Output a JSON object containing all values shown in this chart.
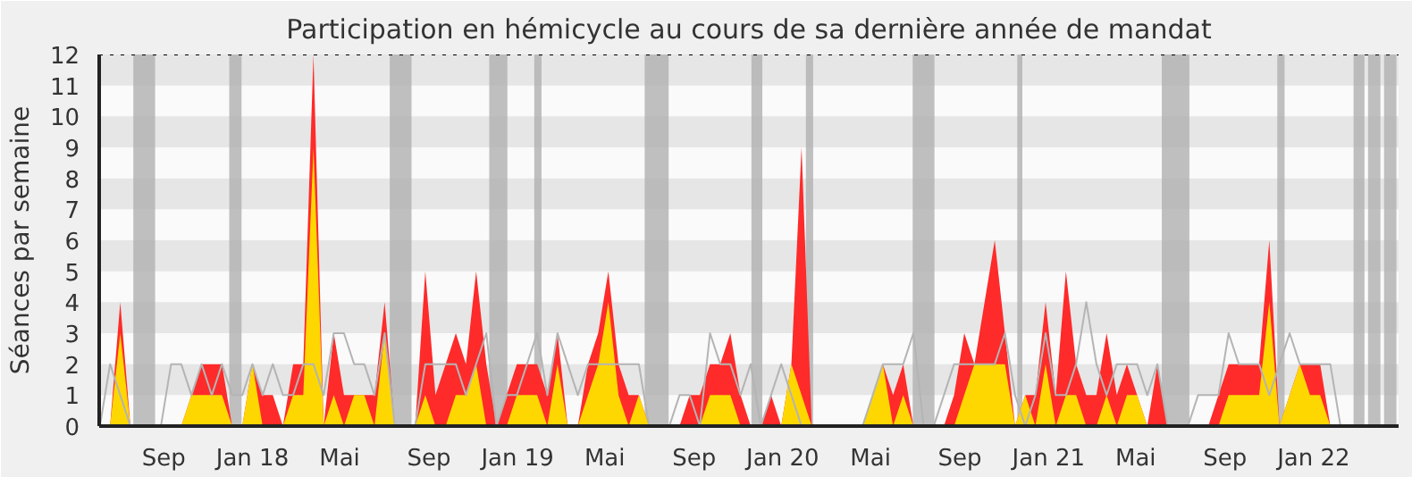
{
  "chart_data": {
    "type": "area",
    "title": "Participation en hémicycle au cours de sa dernière année de mandat",
    "ylabel": "Séances par semaine",
    "x": [
      "2017-06-05",
      "2017-06-19",
      "2017-07-03",
      "2017-07-17",
      "2017-07-31",
      "2017-08-14",
      "2017-08-28",
      "2017-09-11",
      "2017-09-25",
      "2017-10-09",
      "2017-10-23",
      "2017-11-06",
      "2017-11-20",
      "2017-12-04",
      "2017-12-18",
      "2018-01-01",
      "2018-01-15",
      "2018-01-29",
      "2018-02-12",
      "2018-02-26",
      "2018-03-12",
      "2018-03-26",
      "2018-04-09",
      "2018-04-23",
      "2018-05-07",
      "2018-05-21",
      "2018-06-04",
      "2018-06-18",
      "2018-07-02",
      "2018-07-16",
      "2018-07-30",
      "2018-08-13",
      "2018-08-27",
      "2018-09-10",
      "2018-09-24",
      "2018-10-08",
      "2018-10-22",
      "2018-11-05",
      "2018-11-19",
      "2018-12-03",
      "2018-12-17",
      "2018-12-31",
      "2019-01-14",
      "2019-01-28",
      "2019-02-11",
      "2019-02-25",
      "2019-03-11",
      "2019-03-25",
      "2019-04-08",
      "2019-04-22",
      "2019-05-06",
      "2019-05-20",
      "2019-06-03",
      "2019-06-17",
      "2019-07-01",
      "2019-07-15",
      "2019-07-29",
      "2019-08-12",
      "2019-08-26",
      "2019-09-09",
      "2019-09-23",
      "2019-10-07",
      "2019-10-21",
      "2019-11-04",
      "2019-11-18",
      "2019-12-02",
      "2019-12-16",
      "2019-12-30",
      "2020-01-13",
      "2020-01-27",
      "2020-02-10",
      "2020-02-24",
      "2020-03-09",
      "2020-03-23",
      "2020-04-06",
      "2020-04-20",
      "2020-05-04",
      "2020-05-18",
      "2020-06-01",
      "2020-06-15",
      "2020-06-29",
      "2020-07-13",
      "2020-07-27",
      "2020-08-10",
      "2020-08-24",
      "2020-09-07",
      "2020-09-21",
      "2020-10-05",
      "2020-10-19",
      "2020-11-02",
      "2020-11-16",
      "2020-11-30",
      "2020-12-14",
      "2020-12-28",
      "2021-01-11",
      "2021-01-25",
      "2021-02-08",
      "2021-02-22",
      "2021-03-08",
      "2021-03-22",
      "2021-04-05",
      "2021-04-19",
      "2021-05-03",
      "2021-05-17",
      "2021-05-31",
      "2021-06-14",
      "2021-06-28",
      "2021-07-12",
      "2021-07-26",
      "2021-08-09",
      "2021-08-23",
      "2021-09-06",
      "2021-09-20",
      "2021-10-04",
      "2021-10-18",
      "2021-11-01",
      "2021-11-15",
      "2021-11-29",
      "2021-12-13",
      "2021-12-27",
      "2022-01-10",
      "2022-01-24",
      "2022-02-07",
      "2022-02-21",
      "2022-03-07",
      "2022-03-21",
      "2022-04-04",
      "2022-04-18"
    ],
    "series": [
      {
        "color": "#ff2a2a",
        "values": [
          0,
          0,
          4,
          0,
          0,
          0,
          0,
          0,
          0,
          1,
          2,
          2,
          2,
          0,
          0,
          2,
          1,
          1,
          0,
          2,
          2,
          12,
          0,
          3,
          1,
          1,
          1,
          1,
          4,
          0,
          0,
          0,
          5,
          1,
          2,
          3,
          2,
          5,
          2,
          0,
          1,
          2,
          2,
          2,
          1,
          3,
          0,
          0,
          2,
          3,
          5,
          2,
          1,
          1,
          0,
          0,
          0,
          0,
          1,
          1,
          2,
          2,
          3,
          1,
          0,
          0,
          1,
          0,
          2,
          9,
          0,
          0,
          0,
          0,
          0,
          0,
          1,
          2,
          1,
          2,
          0,
          0,
          0,
          0,
          1,
          3,
          2,
          4,
          6,
          3,
          0,
          1,
          1,
          4,
          1,
          5,
          2,
          1,
          1,
          3,
          1,
          2,
          1,
          0,
          2,
          0,
          0,
          0,
          0,
          0,
          1,
          2,
          2,
          2,
          2,
          6,
          0,
          1,
          2,
          2,
          2,
          0,
          0,
          0,
          0,
          0,
          0,
          0
        ]
      },
      {
        "color": "#ffd700",
        "values": [
          0,
          0,
          3,
          0,
          0,
          0,
          0,
          0,
          0,
          1,
          1,
          1,
          1,
          0,
          0,
          2,
          0,
          0,
          0,
          1,
          1,
          9,
          0,
          1,
          0,
          1,
          1,
          0,
          3,
          0,
          0,
          0,
          1,
          0,
          0,
          1,
          1,
          2,
          0,
          0,
          0,
          1,
          1,
          1,
          0,
          2,
          0,
          0,
          1,
          2,
          4,
          1,
          0,
          1,
          0,
          0,
          0,
          0,
          0,
          0,
          1,
          1,
          1,
          0,
          0,
          0,
          0,
          0,
          2,
          1,
          0,
          0,
          0,
          0,
          0,
          0,
          1,
          2,
          0,
          1,
          0,
          0,
          0,
          0,
          0,
          1,
          2,
          2,
          2,
          2,
          0,
          1,
          0,
          2,
          0,
          1,
          1,
          0,
          0,
          1,
          0,
          1,
          1,
          0,
          0,
          0,
          0,
          0,
          0,
          0,
          0,
          1,
          1,
          1,
          1,
          4,
          0,
          1,
          2,
          1,
          1,
          0,
          0,
          0,
          0,
          0,
          0,
          0
        ]
      },
      {
        "type": "line",
        "color": "#b4b4b4",
        "values": [
          0,
          2,
          1,
          0,
          0,
          0,
          0,
          2,
          2,
          1,
          2,
          1,
          2,
          1,
          1,
          2,
          1,
          2,
          1,
          1,
          2,
          2,
          1,
          3,
          3,
          2,
          2,
          1,
          3,
          0,
          0,
          0,
          2,
          2,
          2,
          2,
          1,
          2,
          3,
          0,
          1,
          1,
          2,
          3,
          1,
          3,
          2,
          1,
          2,
          2,
          2,
          2,
          2,
          2,
          0,
          0,
          0,
          1,
          1,
          0,
          3,
          2,
          2,
          1,
          2,
          0,
          1,
          2,
          1,
          0,
          0,
          0,
          0,
          0,
          0,
          0,
          1,
          2,
          2,
          2,
          3,
          0,
          0,
          1,
          2,
          2,
          2,
          2,
          2,
          3,
          1,
          0,
          1,
          3,
          1,
          1,
          2,
          4,
          2,
          1,
          2,
          2,
          2,
          1,
          2,
          0,
          0,
          0,
          1,
          1,
          1,
          3,
          2,
          2,
          2,
          1,
          2,
          3,
          2,
          2,
          2,
          2,
          0,
          0,
          0,
          0,
          0,
          0
        ]
      }
    ],
    "xlim": [
      "2017-06-04",
      "2022-04-28"
    ],
    "xticks": [
      {
        "value": "2017-09-01",
        "label": "Sep"
      },
      {
        "value": "2018-01-01",
        "label": "Jan 18"
      },
      {
        "value": "2018-05-01",
        "label": "Mai"
      },
      {
        "value": "2018-09-01",
        "label": "Sep"
      },
      {
        "value": "2019-01-01",
        "label": "Jan 19"
      },
      {
        "value": "2019-05-01",
        "label": "Mai"
      },
      {
        "value": "2019-09-01",
        "label": "Sep"
      },
      {
        "value": "2020-01-01",
        "label": "Jan 20"
      },
      {
        "value": "2020-05-01",
        "label": "Mai"
      },
      {
        "value": "2020-09-01",
        "label": "Sep"
      },
      {
        "value": "2021-01-01",
        "label": "Jan 21"
      },
      {
        "value": "2021-05-01",
        "label": "Mai"
      },
      {
        "value": "2021-09-01",
        "label": "Sep"
      },
      {
        "value": "2022-01-01",
        "label": "Jan 22"
      }
    ],
    "ylim": [
      0,
      12
    ],
    "yticks": [
      0,
      1,
      2,
      3,
      4,
      5,
      6,
      7,
      8,
      9,
      10,
      11,
      12
    ],
    "grid": false,
    "ref_lines": [
      {
        "axis": "y",
        "value": 12,
        "color": "#000000",
        "line_style": "dotted"
      }
    ],
    "bands": [
      {
        "axis": "y",
        "from": 1,
        "to": 2,
        "color": "#e6e6e6"
      },
      {
        "axis": "y",
        "from": 3,
        "to": 4,
        "color": "#e6e6e6"
      },
      {
        "axis": "y",
        "from": 5,
        "to": 6,
        "color": "#e6e6e6"
      },
      {
        "axis": "y",
        "from": 7,
        "to": 8,
        "color": "#e6e6e6"
      },
      {
        "axis": "y",
        "from": 9,
        "to": 10,
        "color": "#e6e6e6"
      },
      {
        "axis": "y",
        "from": 11,
        "to": 12,
        "color": "#e6e6e6"
      },
      {
        "axis": "x",
        "from": "2017-07-21",
        "to": "2017-08-20",
        "color": "#b0b0b0"
      },
      {
        "axis": "x",
        "from": "2017-11-30",
        "to": "2017-12-17",
        "color": "#b0b0b0"
      },
      {
        "axis": "x",
        "from": "2018-07-09",
        "to": "2018-08-08",
        "color": "#b0b0b0"
      },
      {
        "axis": "x",
        "from": "2018-11-23",
        "to": "2018-12-18",
        "color": "#b0b0b0"
      },
      {
        "axis": "x",
        "from": "2019-01-24",
        "to": "2019-02-03",
        "color": "#b0b0b0"
      },
      {
        "axis": "x",
        "from": "2019-06-25",
        "to": "2019-07-28",
        "color": "#b0b0b0"
      },
      {
        "axis": "x",
        "from": "2019-11-19",
        "to": "2019-12-04",
        "color": "#b0b0b0"
      },
      {
        "axis": "x",
        "from": "2020-02-02",
        "to": "2020-02-12",
        "color": "#b0b0b0"
      },
      {
        "axis": "x",
        "from": "2020-06-28",
        "to": "2020-07-28",
        "color": "#b0b0b0"
      },
      {
        "axis": "x",
        "from": "2020-11-19",
        "to": "2020-11-26",
        "color": "#b0b0b0"
      },
      {
        "axis": "x",
        "from": "2021-06-06",
        "to": "2021-07-14",
        "color": "#b0b0b0"
      },
      {
        "axis": "x",
        "from": "2021-11-12",
        "to": "2021-11-22",
        "color": "#b0b0b0"
      },
      {
        "axis": "x",
        "from": "2022-02-25",
        "to": "2022-03-12",
        "color": "#b0b0b0"
      },
      {
        "axis": "x",
        "from": "2022-03-17",
        "to": "2022-04-03",
        "color": "#b0b0b0"
      },
      {
        "axis": "x",
        "from": "2022-04-08",
        "to": "2022-04-25",
        "color": "#b0b0b0"
      }
    ]
  }
}
